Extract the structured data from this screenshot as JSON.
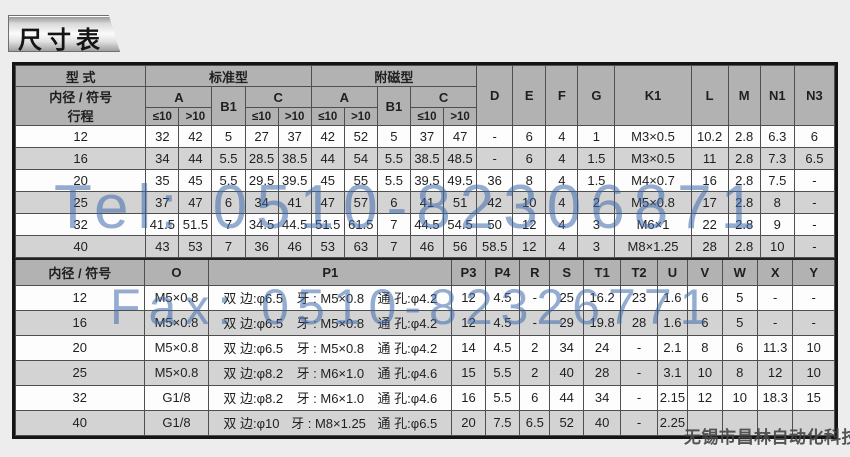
{
  "page": {
    "title": "尺寸表"
  },
  "watermarks": {
    "tel": "Tel: 0510-82306871",
    "fax": "Fax: 0510-82326771",
    "company": "无锡市昌林自动化科技"
  },
  "table1": {
    "header": {
      "col_type": "型 式",
      "col_type_sub1": "内径 / 符号",
      "col_type_sub2": "行程",
      "standard": "标准型",
      "magnet": "附磁型",
      "a": "A",
      "b1": "B1",
      "c": "C",
      "le10": "≤10",
      "gt10": ">10",
      "cols": [
        "D",
        "E",
        "F",
        "G",
        "K1",
        "L",
        "M",
        "N1",
        "N3"
      ]
    },
    "rows": [
      {
        "bore": "12",
        "cells": [
          "32",
          "42",
          "5",
          "27",
          "37",
          "42",
          "52",
          "5",
          "37",
          "47",
          "-",
          "6",
          "4",
          "1",
          "M3×0.5",
          "10.2",
          "2.8",
          "6.3",
          "6"
        ]
      },
      {
        "bore": "16",
        "cells": [
          "34",
          "44",
          "5.5",
          "28.5",
          "38.5",
          "44",
          "54",
          "5.5",
          "38.5",
          "48.5",
          "-",
          "6",
          "4",
          "1.5",
          "M3×0.5",
          "11",
          "2.8",
          "7.3",
          "6.5"
        ]
      },
      {
        "bore": "20",
        "cells": [
          "35",
          "45",
          "5.5",
          "29.5",
          "39.5",
          "45",
          "55",
          "5.5",
          "39.5",
          "49.5",
          "36",
          "8",
          "4",
          "1.5",
          "M4×0.7",
          "16",
          "2.8",
          "7.5",
          "-"
        ]
      },
      {
        "bore": "25",
        "cells": [
          "37",
          "47",
          "6",
          "34",
          "41",
          "47",
          "57",
          "6",
          "41",
          "51",
          "42",
          "10",
          "4",
          "2",
          "M5×0.8",
          "17",
          "2.8",
          "8",
          "-"
        ]
      },
      {
        "bore": "32",
        "cells": [
          "41.5",
          "51.5",
          "7",
          "34.5",
          "44.5",
          "51.5",
          "61.5",
          "7",
          "44.5",
          "54.5",
          "50",
          "12",
          "4",
          "3",
          "M6×1",
          "22",
          "2.8",
          "9",
          "-"
        ]
      },
      {
        "bore": "40",
        "cells": [
          "43",
          "53",
          "7",
          "36",
          "46",
          "53",
          "63",
          "7",
          "46",
          "56",
          "58.5",
          "12",
          "4",
          "3",
          "M8×1.25",
          "28",
          "2.8",
          "10",
          "-"
        ]
      }
    ]
  },
  "table2": {
    "header": {
      "label": "内径 / 符号",
      "cols": [
        "O",
        "P1",
        "P3",
        "P4",
        "R",
        "S",
        "T1",
        "T2",
        "U",
        "V",
        "W",
        "X",
        "Y"
      ]
    },
    "rows": [
      {
        "bore": "12",
        "o": "M5×0.8",
        "p1": [
          "双 边:φ6.5",
          "牙 : M5×0.8",
          "通 孔:φ4.2"
        ],
        "cells": [
          "12",
          "4.5",
          "-",
          "25",
          "16.2",
          "23",
          "1.6",
          "6",
          "5",
          "-",
          "-"
        ]
      },
      {
        "bore": "16",
        "o": "M5×0.8",
        "p1": [
          "双 边:φ6.5",
          "牙 : M5×0.8",
          "通 孔:φ4.2"
        ],
        "cells": [
          "12",
          "4.5",
          "-",
          "29",
          "19.8",
          "28",
          "1.6",
          "6",
          "5",
          "-",
          "-"
        ]
      },
      {
        "bore": "20",
        "o": "M5×0.8",
        "p1": [
          "双 边:φ6.5",
          "牙 : M5×0.8",
          "通 孔:φ4.2"
        ],
        "cells": [
          "14",
          "4.5",
          "2",
          "34",
          "24",
          "-",
          "2.1",
          "8",
          "6",
          "11.3",
          "10"
        ]
      },
      {
        "bore": "25",
        "o": "M5×0.8",
        "p1": [
          "双 边:φ8.2",
          "牙 : M6×1.0",
          "通 孔:φ4.6"
        ],
        "cells": [
          "15",
          "5.5",
          "2",
          "40",
          "28",
          "-",
          "3.1",
          "10",
          "8",
          "12",
          "10"
        ]
      },
      {
        "bore": "32",
        "o": "G1/8",
        "p1": [
          "双 边:φ8.2",
          "牙 : M6×1.0",
          "通 孔:φ4.6"
        ],
        "cells": [
          "16",
          "5.5",
          "6",
          "44",
          "34",
          "-",
          "2.15",
          "12",
          "10",
          "18.3",
          "15"
        ]
      },
      {
        "bore": "40",
        "o": "G1/8",
        "p1": [
          "双 边:φ10",
          "牙 : M8×1.25",
          "通 孔:φ6.5"
        ],
        "cells": [
          "20",
          "7.5",
          "6.5",
          "52",
          "40",
          "-",
          "2.25",
          "",
          "",
          "",
          ""
        ]
      }
    ]
  }
}
